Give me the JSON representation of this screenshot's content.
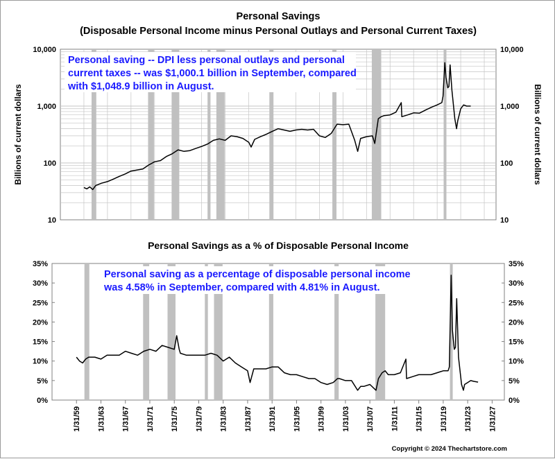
{
  "chart_data": [
    {
      "type": "line",
      "title": "Personal Savings",
      "subtitle": "(Disposable Personal Income minus Personal Outlays and Personal Current Taxes)",
      "ylabel_left": "Billions of current dollars",
      "ylabel_right": "Billions of current dollars",
      "yscale": "log",
      "ylim": [
        10,
        10000
      ],
      "xlim": [
        1955,
        2029
      ],
      "y_ticks": [
        10,
        100,
        1000,
        10000
      ],
      "y_tick_labels": [
        "10",
        "100",
        "1,000",
        "10,000"
      ],
      "grid": true,
      "annotation": [
        "Personal saving -- DPI less personal outlays and personal",
        "current taxes -- was $1,000.1 billion in September, compared",
        "with $1,048.9 billion in August."
      ],
      "series": [
        {
          "x": [
            1959,
            1959.5,
            1960,
            1960.5,
            1961,
            1962,
            1963,
            1964,
            1965,
            1966,
            1967,
            1968,
            1969,
            1970,
            1971,
            1972,
            1973,
            1974,
            1975,
            1976,
            1977,
            1978,
            1979,
            1980,
            1981,
            1982,
            1983,
            1984,
            1985,
            1986,
            1987,
            1987.4,
            1988,
            1989,
            1990,
            1991,
            1992,
            1993,
            1994,
            1995,
            1996,
            1997,
            1998,
            1999,
            2000,
            2001,
            2001.7,
            2002,
            2003,
            2004,
            2005,
            2005.5,
            2006,
            2007,
            2008,
            2008.4,
            2009,
            2009.5,
            2010,
            2011,
            2012,
            2012.9,
            2013,
            2014,
            2015,
            2016,
            2017,
            2018,
            2019,
            2019.8,
            2020,
            2020.3,
            2020.5,
            2020.8,
            2021,
            2021.2,
            2021.5,
            2022,
            2022.3,
            2022.5,
            2023,
            2023.5,
            2024,
            2024.7
          ],
          "values": [
            37,
            35,
            38,
            34,
            40,
            44,
            47,
            52,
            58,
            64,
            72,
            75,
            78,
            92,
            105,
            110,
            130,
            145,
            170,
            160,
            165,
            180,
            195,
            215,
            250,
            265,
            250,
            300,
            290,
            270,
            230,
            190,
            260,
            290,
            320,
            360,
            400,
            380,
            360,
            380,
            390,
            380,
            390,
            300,
            280,
            330,
            430,
            480,
            470,
            480,
            250,
            160,
            270,
            290,
            300,
            220,
            600,
            650,
            680,
            700,
            780,
            1150,
            650,
            700,
            760,
            750,
            850,
            950,
            1050,
            1150,
            1500,
            5800,
            3200,
            2100,
            2200,
            5300,
            1900,
            600,
            400,
            550,
            900,
            1050,
            1000,
            1000
          ]
        }
      ],
      "recessions": [
        [
          1960.3,
          1961.1
        ],
        [
          1969.9,
          1970.9
        ],
        [
          1973.9,
          1975.2
        ],
        [
          1980.0,
          1980.5
        ],
        [
          1981.5,
          1982.9
        ],
        [
          1990.5,
          1991.2
        ],
        [
          2001.2,
          2001.9
        ],
        [
          2007.9,
          2009.5
        ],
        [
          2020.1,
          2020.4
        ]
      ]
    },
    {
      "type": "line",
      "title": "Personal Savings as a % of Disposable Personal Income",
      "ylim": [
        0,
        35
      ],
      "xlim": [
        1955,
        2029
      ],
      "y_ticks": [
        0,
        5,
        10,
        15,
        20,
        25,
        30,
        35
      ],
      "y_tick_labels": [
        "0%",
        "5%",
        "10%",
        "15%",
        "20%",
        "25%",
        "30%",
        "35%"
      ],
      "grid": false,
      "x_tick_labels": [
        "1/31/59",
        "1/31/63",
        "1/31/67",
        "1/31/71",
        "1/31/75",
        "1/31/79",
        "1/31/83",
        "1/31/87",
        "1/31/91",
        "1/31/95",
        "1/31/99",
        "1/31/03",
        "1/31/07",
        "1/31/11",
        "1/31/15",
        "1/31/19",
        "1/31/23",
        "1/31/27"
      ],
      "x_ticks": [
        1959,
        1963,
        1967,
        1971,
        1975,
        1979,
        1983,
        1987,
        1991,
        1995,
        1999,
        2003,
        2007,
        2011,
        2015,
        2019,
        2023,
        2027
      ],
      "annotation": [
        "Personal saving as a percentage of disposable personal income",
        "was 4.58% in September, compared with 4.81% in August."
      ],
      "series": [
        {
          "x": [
            1959,
            1959.5,
            1960,
            1960.5,
            1961,
            1962,
            1963,
            1964,
            1965,
            1966,
            1967,
            1968,
            1969,
            1970,
            1971,
            1972,
            1973,
            1974,
            1975,
            1975.4,
            1975.8,
            1976,
            1977,
            1978,
            1979,
            1980,
            1981,
            1982,
            1983,
            1984,
            1985,
            1986,
            1987,
            1987.4,
            1988,
            1989,
            1990,
            1991,
            1992,
            1993,
            1994,
            1995,
            1996,
            1997,
            1998,
            1999,
            2000,
            2001,
            2001.7,
            2002,
            2003,
            2004,
            2005,
            2005.5,
            2006,
            2007,
            2008,
            2008.4,
            2009,
            2009.5,
            2010,
            2011,
            2012,
            2012.9,
            2013,
            2014,
            2015,
            2016,
            2017,
            2018,
            2019,
            2019.8,
            2020,
            2020.3,
            2020.5,
            2020.8,
            2021,
            2021.2,
            2021.5,
            2022,
            2022.3,
            2022.5,
            2023,
            2023.5,
            2024,
            2024.7
          ],
          "values": [
            11,
            10,
            9.5,
            10.5,
            11,
            11,
            10.5,
            11.5,
            11.5,
            11.5,
            12.5,
            12,
            11.5,
            12.5,
            13,
            12.5,
            14,
            13.5,
            13,
            16.5,
            13,
            12,
            11.5,
            11.5,
            11.5,
            11.5,
            12,
            11.5,
            10,
            11,
            9.5,
            8.5,
            7.5,
            4.5,
            8,
            8,
            8,
            8.5,
            8.5,
            7,
            6.5,
            6.5,
            6,
            5.5,
            5.5,
            4.5,
            4,
            4.5,
            5.5,
            5.5,
            5,
            5,
            2.5,
            3.5,
            3.5,
            4,
            2.5,
            5.5,
            7,
            7.5,
            6.5,
            6.5,
            7,
            10.5,
            5.5,
            6,
            6.5,
            6.5,
            6.5,
            7,
            7.5,
            7.5,
            8.5,
            32,
            18,
            13,
            13.5,
            26,
            11,
            4,
            2.5,
            4,
            4.5,
            5,
            4.8,
            4.6
          ]
        }
      ],
      "recessions": [
        [
          1960.3,
          1961.1
        ],
        [
          1969.9,
          1970.9
        ],
        [
          1973.9,
          1975.2
        ],
        [
          1980.0,
          1980.5
        ],
        [
          1981.5,
          1982.9
        ],
        [
          1990.5,
          1991.2
        ],
        [
          2001.2,
          2001.9
        ],
        [
          2007.9,
          2009.5
        ],
        [
          2020.1,
          2020.4
        ]
      ]
    }
  ],
  "footer": {
    "copyright": "Copyright © 2024 Thechartstore.com"
  },
  "colors": {
    "line": "#000000",
    "recession": "#c0c0c0",
    "annotation": "#1a1aff",
    "grid": "#c4c4c4",
    "plot_border": "#808080"
  }
}
